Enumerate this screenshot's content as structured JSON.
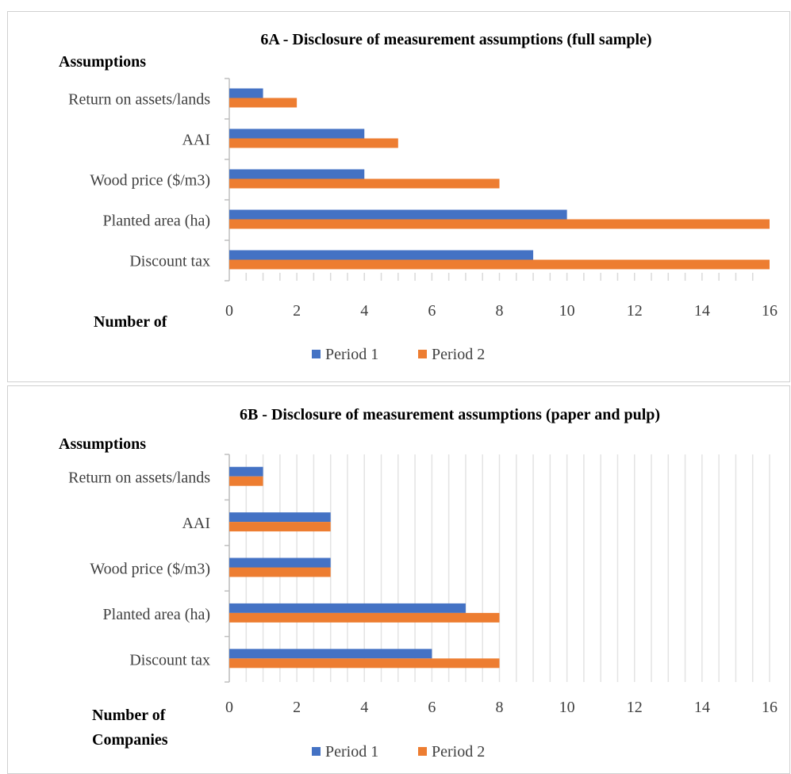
{
  "chart_data": [
    {
      "type": "bar",
      "orientation": "horizontal",
      "title": "6A - Disclosure of measurement assumptions (full sample)",
      "ylabel": "Assumptions",
      "xlabel": "Number of",
      "categories": [
        "Return on assets/lands",
        "AAI",
        "Wood price ($/m3)",
        "Planted area (ha)",
        "Discount tax"
      ],
      "series": [
        {
          "name": "Period 1",
          "color": "#4472C4",
          "values": [
            1,
            4,
            4,
            10,
            9
          ]
        },
        {
          "name": "Period 2",
          "color": "#ED7D31",
          "values": [
            2,
            5,
            8,
            16,
            16
          ]
        }
      ],
      "xlim": [
        0,
        16
      ],
      "xticks": [
        "0",
        "2",
        "4",
        "6",
        "8",
        "10",
        "12",
        "14",
        "16"
      ],
      "grid": false,
      "legend": "bottom"
    },
    {
      "type": "bar",
      "orientation": "horizontal",
      "title": "6B - Disclosure of measurement assumptions (paper and pulp)",
      "ylabel": "Assumptions",
      "xlabel": [
        "Number of",
        "Companies"
      ],
      "categories": [
        "Return on assets/lands",
        "AAI",
        "Wood price ($/m3)",
        "Planted area (ha)",
        "Discount tax"
      ],
      "series": [
        {
          "name": "Period 1",
          "color": "#4472C4",
          "values": [
            1,
            3,
            3,
            7,
            6
          ]
        },
        {
          "name": "Period 2",
          "color": "#ED7D31",
          "values": [
            1,
            3,
            3,
            8,
            8
          ]
        }
      ],
      "xlim": [
        0,
        16
      ],
      "xticks": [
        "0",
        "2",
        "4",
        "6",
        "8",
        "10",
        "12",
        "14",
        "16"
      ],
      "grid": true,
      "legend": "bottom"
    }
  ]
}
